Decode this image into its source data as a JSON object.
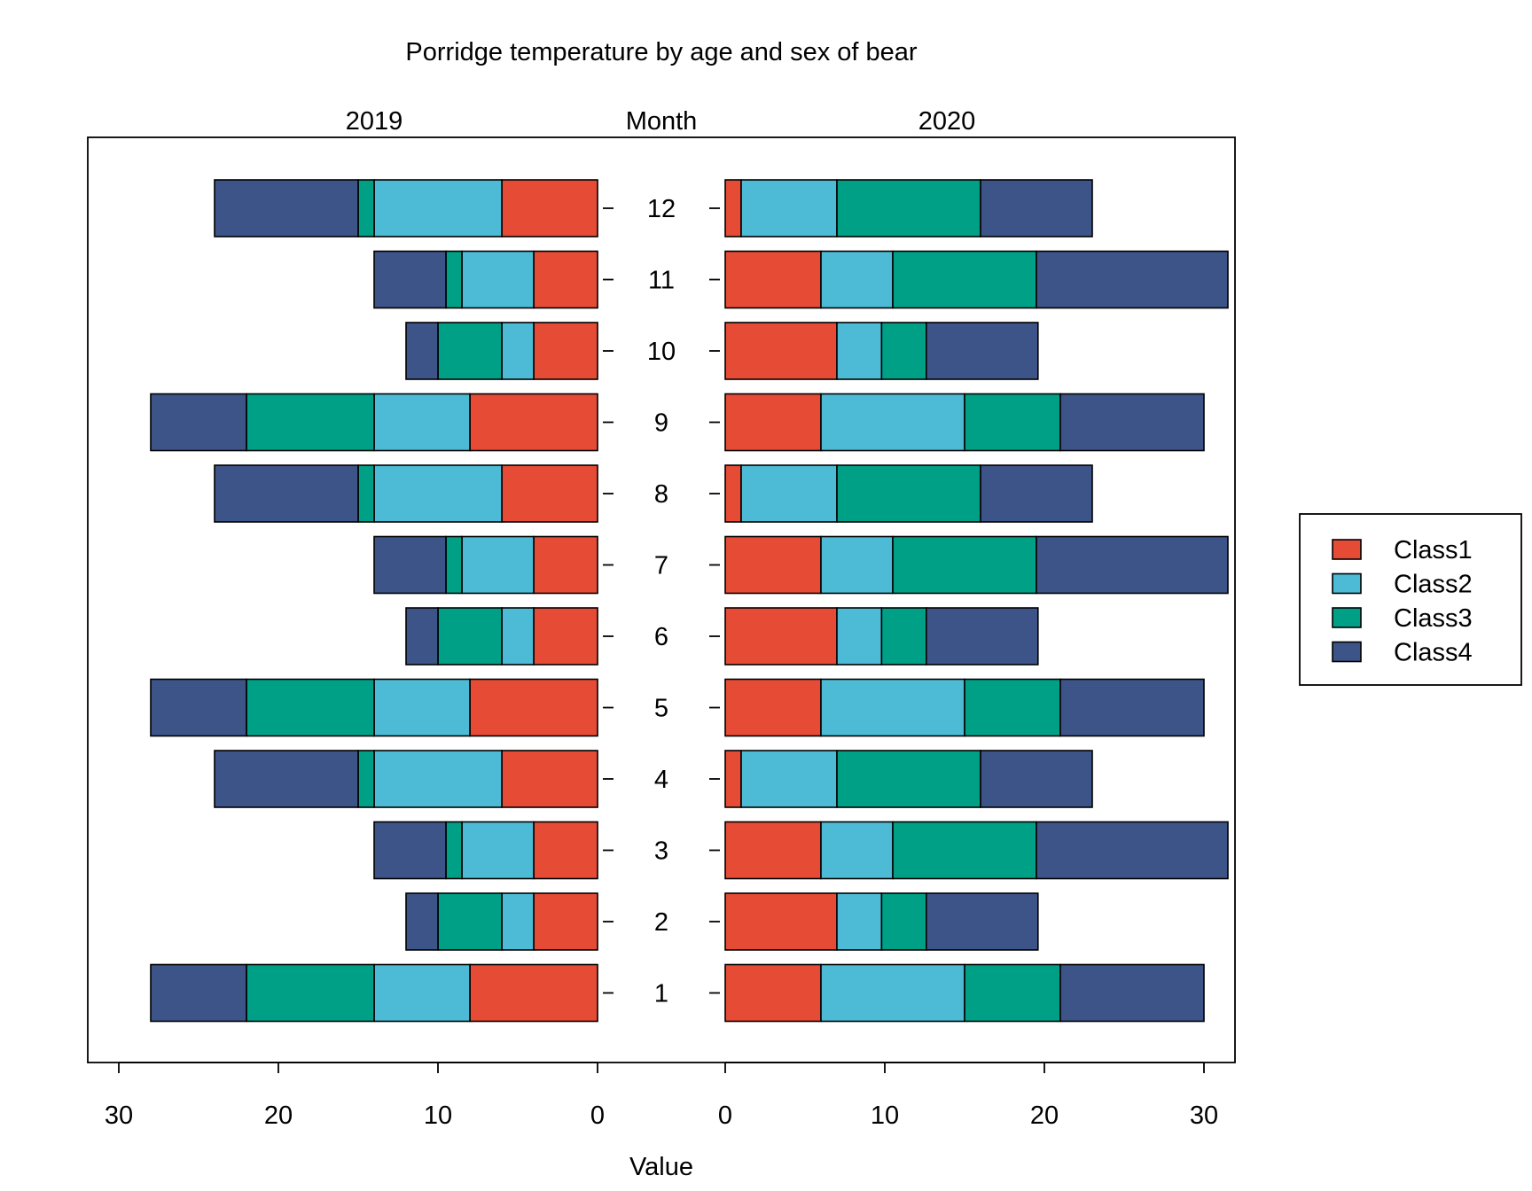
{
  "chart_data": {
    "type": "bar",
    "orientation": "horizontal",
    "stacked": true,
    "title": "Porridge temperature by age and sex of bear",
    "center_label": "Month",
    "xlabel": "Value",
    "categories": [
      "1",
      "2",
      "3",
      "4",
      "5",
      "6",
      "7",
      "8",
      "9",
      "10",
      "11",
      "12"
    ],
    "xlim": [
      0,
      30
    ],
    "xticks": [
      0,
      10,
      20,
      30
    ],
    "panels": [
      {
        "label": "2019",
        "direction": "left",
        "series": [
          {
            "name": "Class1",
            "values": [
              8,
              4,
              4,
              6,
              8,
              4,
              4,
              6,
              8,
              4,
              4,
              6
            ]
          },
          {
            "name": "Class2",
            "values": [
              6,
              2,
              4.5,
              8,
              6,
              2,
              4.5,
              8,
              6,
              2,
              4.5,
              8
            ]
          },
          {
            "name": "Class3",
            "values": [
              8,
              4,
              1,
              1,
              8,
              4,
              1,
              1,
              8,
              4,
              1,
              1
            ]
          },
          {
            "name": "Class4",
            "values": [
              6,
              2,
              4.5,
              9,
              6,
              2,
              4.5,
              9,
              6,
              2,
              4.5,
              9
            ]
          }
        ]
      },
      {
        "label": "2020",
        "direction": "right",
        "series": [
          {
            "name": "Class1",
            "values": [
              6,
              7,
              6,
              1,
              6,
              7,
              6,
              1,
              6,
              7,
              6,
              1
            ]
          },
          {
            "name": "Class2",
            "values": [
              9,
              2.8,
              4.5,
              6,
              9,
              2.8,
              4.5,
              6,
              9,
              2.8,
              4.5,
              6
            ]
          },
          {
            "name": "Class3",
            "values": [
              6,
              2.8,
              9,
              9,
              6,
              2.8,
              9,
              9,
              6,
              2.8,
              9,
              9
            ]
          },
          {
            "name": "Class4",
            "values": [
              9,
              7,
              12,
              7,
              9,
              7,
              12,
              7,
              9,
              7,
              12,
              7
            ]
          }
        ]
      }
    ],
    "legend": {
      "placement": "right",
      "entries": [
        {
          "label": "Class1",
          "color": "#E64B35"
        },
        {
          "label": "Class2",
          "color": "#4DBBD5"
        },
        {
          "label": "Class3",
          "color": "#00A087"
        },
        {
          "label": "Class4",
          "color": "#3C5488"
        }
      ]
    },
    "grid": false
  }
}
